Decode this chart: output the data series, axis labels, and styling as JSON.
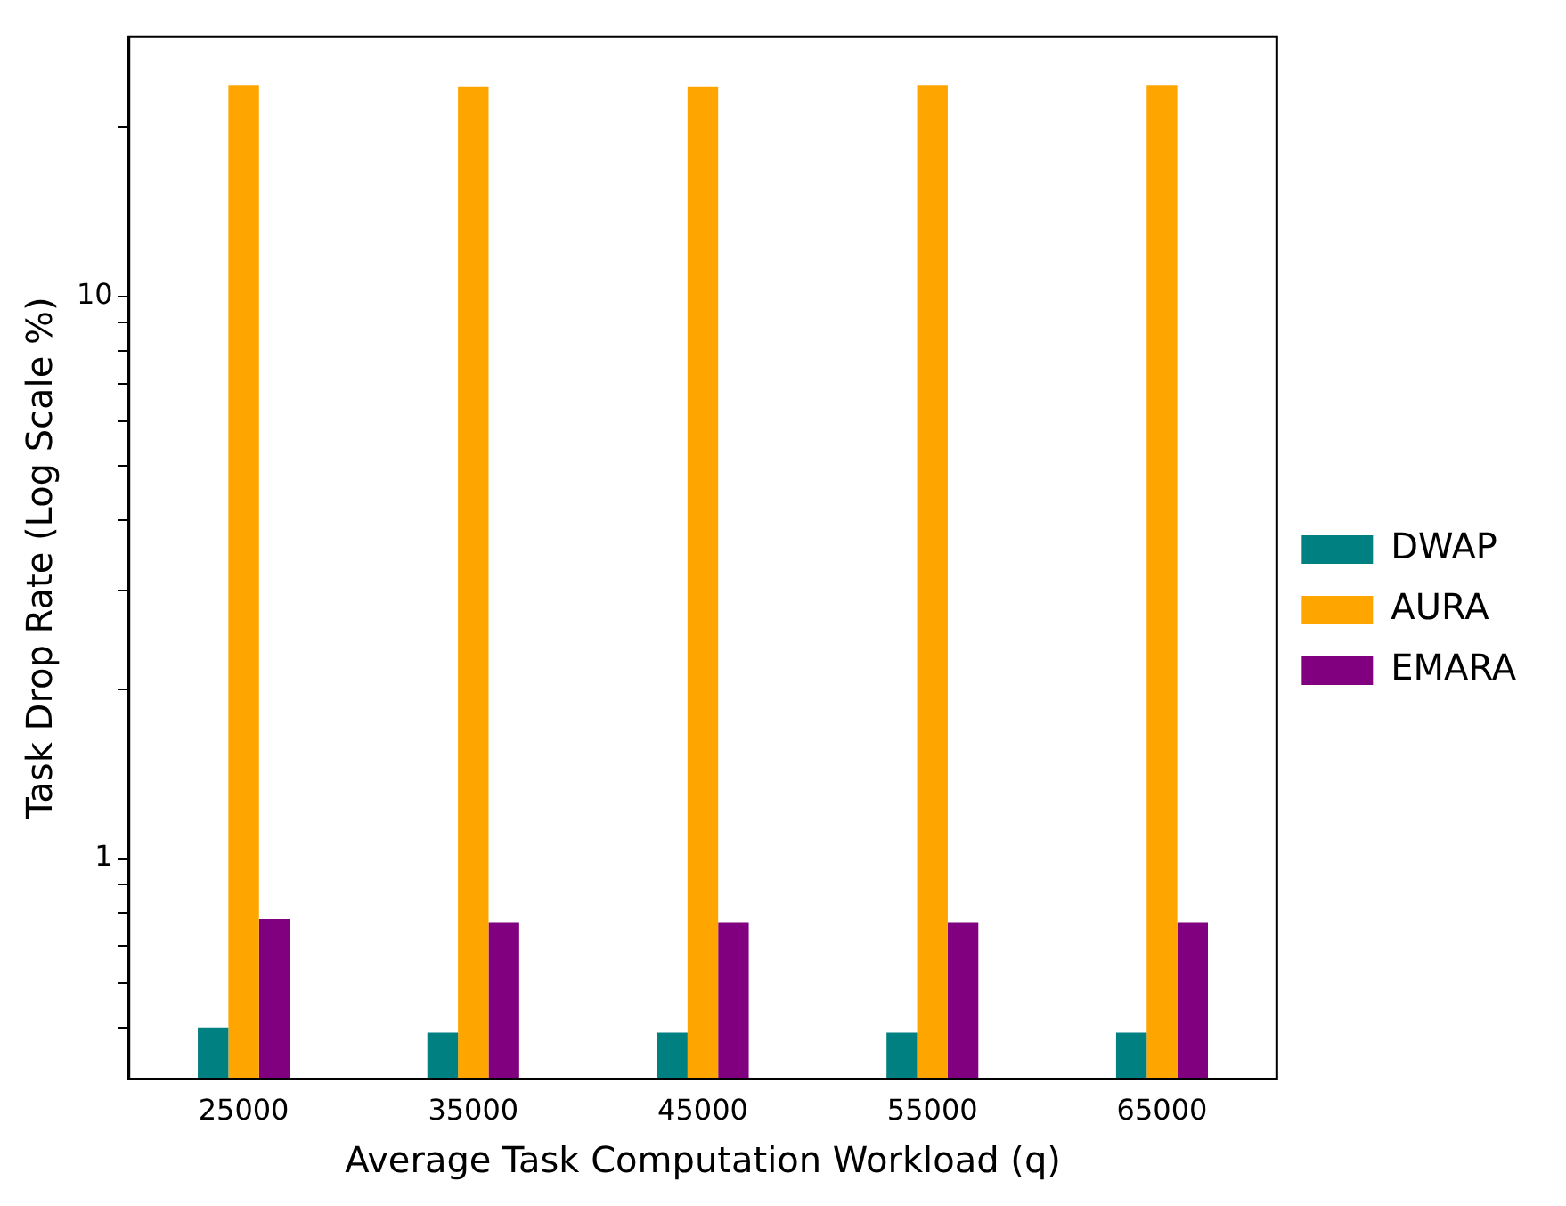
{
  "chart_data": {
    "type": "bar",
    "xlabel": "Average Task Computation Workload (q)",
    "ylabel": "Task Drop Rate (Log Scale %)",
    "categories": [
      "25000",
      "35000",
      "45000",
      "55000",
      "65000"
    ],
    "series": [
      {
        "name": "DWAP",
        "color": "#008080",
        "values": [
          0.5,
          0.49,
          0.49,
          0.49,
          0.49
        ]
      },
      {
        "name": "AURA",
        "color": "#ffa500",
        "values": [
          23.8,
          23.6,
          23.6,
          23.8,
          23.8
        ]
      },
      {
        "name": "EMARA",
        "color": "#800080",
        "values": [
          0.78,
          0.77,
          0.77,
          0.77,
          0.77
        ]
      }
    ],
    "log": "y",
    "ylim": [
      0.405,
      29
    ],
    "yticks": [
      {
        "value": 0.5,
        "label": null
      },
      {
        "value": 0.6,
        "label": null
      },
      {
        "value": 0.7,
        "label": null
      },
      {
        "value": 0.8,
        "label": null
      },
      {
        "value": 0.9,
        "label": null
      },
      1,
      {
        "value": 2,
        "label": null
      },
      {
        "value": 3,
        "label": null
      },
      {
        "value": 4,
        "label": null
      },
      {
        "value": 5,
        "label": null
      },
      {
        "value": 6,
        "label": null
      },
      {
        "value": 7,
        "label": null
      },
      {
        "value": 8,
        "label": null
      },
      {
        "value": 9,
        "label": null
      },
      10,
      {
        "value": 20,
        "label": null
      }
    ],
    "grid": false,
    "legend": "right"
  }
}
